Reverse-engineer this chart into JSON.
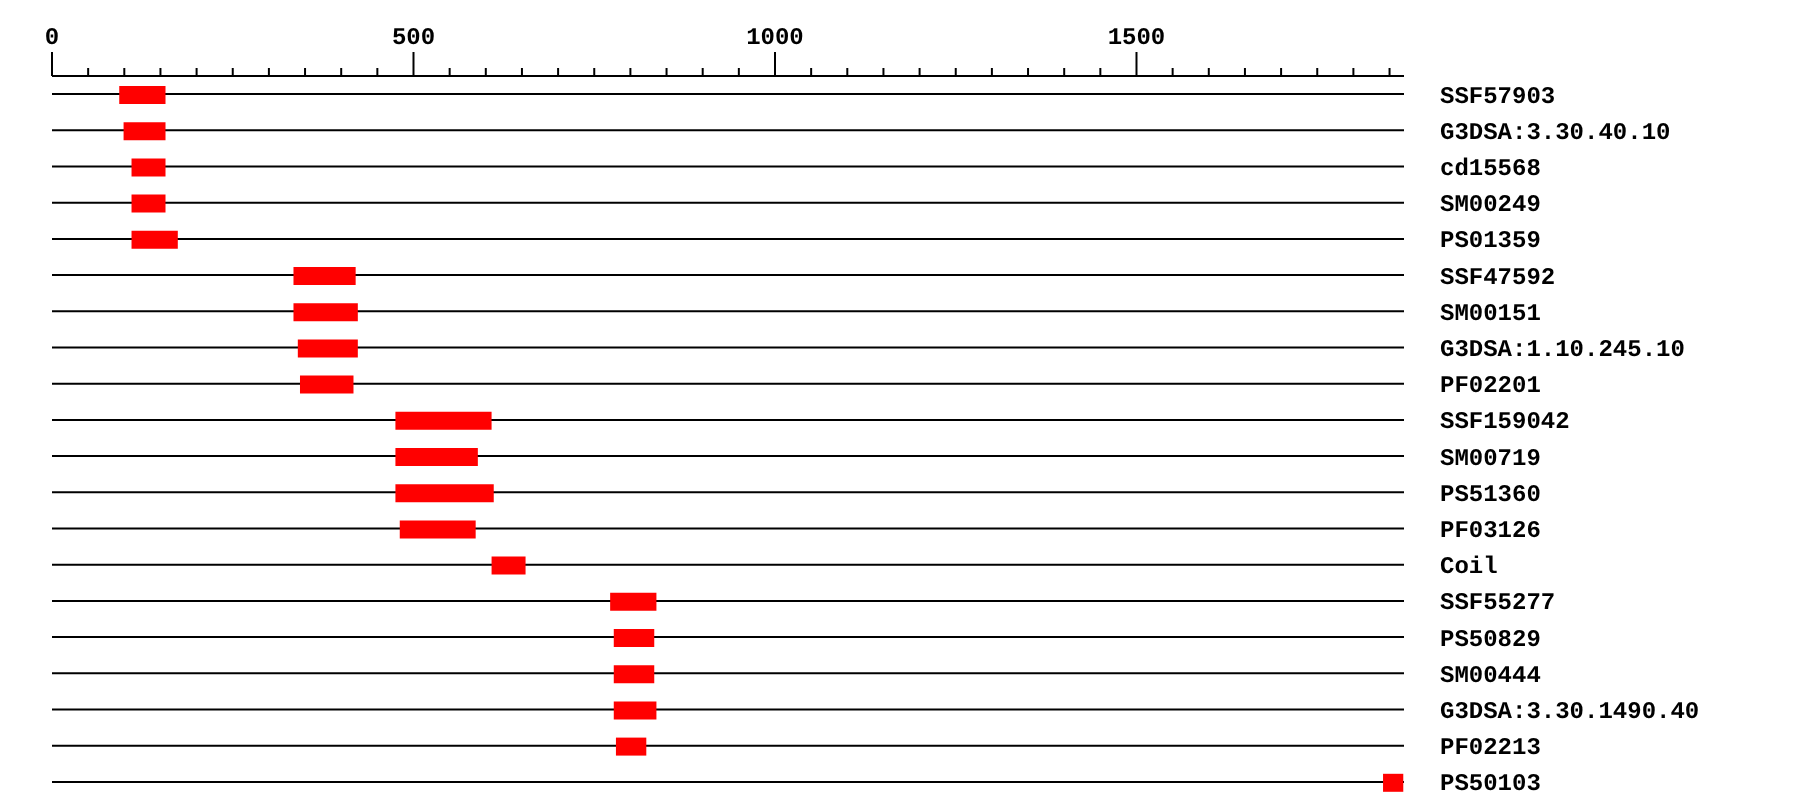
{
  "chart_data": {
    "type": "bar",
    "orientation": "horizontal",
    "categories": [
      "SSF57903",
      "G3DSA:3.30.40.10",
      "cd15568",
      "SM00249",
      "PS01359",
      "SSF47592",
      "SM00151",
      "G3DSA:1.10.245.10",
      "PF02201",
      "SSF159042",
      "SM00719",
      "PS51360",
      "PF03126",
      "Coil",
      "SSF55277",
      "PS50829",
      "SM00444",
      "G3DSA:3.30.1490.40",
      "PF02213",
      "PS50103"
    ],
    "base": [
      93,
      99,
      110,
      110,
      110,
      334,
      334,
      340,
      343,
      475,
      475,
      475,
      481,
      608,
      772,
      777,
      777,
      777,
      780,
      1841
    ],
    "values": [
      64,
      58,
      47,
      47,
      64,
      86,
      89,
      83,
      74,
      133,
      114,
      136,
      105,
      47,
      64,
      56,
      56,
      59,
      42,
      28
    ],
    "color": "#ff0000",
    "xlim": [
      0,
      1870
    ],
    "xticks": [
      0,
      {
        "value": 50,
        "label": null
      },
      {
        "value": 100,
        "label": null
      },
      {
        "value": 150,
        "label": null
      },
      {
        "value": 200,
        "label": null
      },
      {
        "value": 250,
        "label": null
      },
      {
        "value": 300,
        "label": null
      },
      {
        "value": 350,
        "label": null
      },
      {
        "value": 400,
        "label": null
      },
      {
        "value": 450,
        "label": null
      },
      500,
      {
        "value": 550,
        "label": null
      },
      {
        "value": 600,
        "label": null
      },
      {
        "value": 650,
        "label": null
      },
      {
        "value": 700,
        "label": null
      },
      {
        "value": 750,
        "label": null
      },
      {
        "value": 800,
        "label": null
      },
      {
        "value": 850,
        "label": null
      },
      {
        "value": 900,
        "label": null
      },
      {
        "value": 950,
        "label": null
      },
      1000,
      {
        "value": 1050,
        "label": null
      },
      {
        "value": 1100,
        "label": null
      },
      {
        "value": 1150,
        "label": null
      },
      {
        "value": 1200,
        "label": null
      },
      {
        "value": 1250,
        "label": null
      },
      {
        "value": 1300,
        "label": null
      },
      {
        "value": 1350,
        "label": null
      },
      {
        "value": 1400,
        "label": null
      },
      {
        "value": 1450,
        "label": null
      },
      1500,
      {
        "value": 1550,
        "label": null
      },
      {
        "value": 1600,
        "label": null
      },
      {
        "value": 1650,
        "label": null
      },
      {
        "value": 1700,
        "label": null
      },
      {
        "value": 1750,
        "label": null
      },
      {
        "value": 1800,
        "label": null
      },
      {
        "value": 1850,
        "label": null
      }
    ],
    "grid": "y"
  }
}
